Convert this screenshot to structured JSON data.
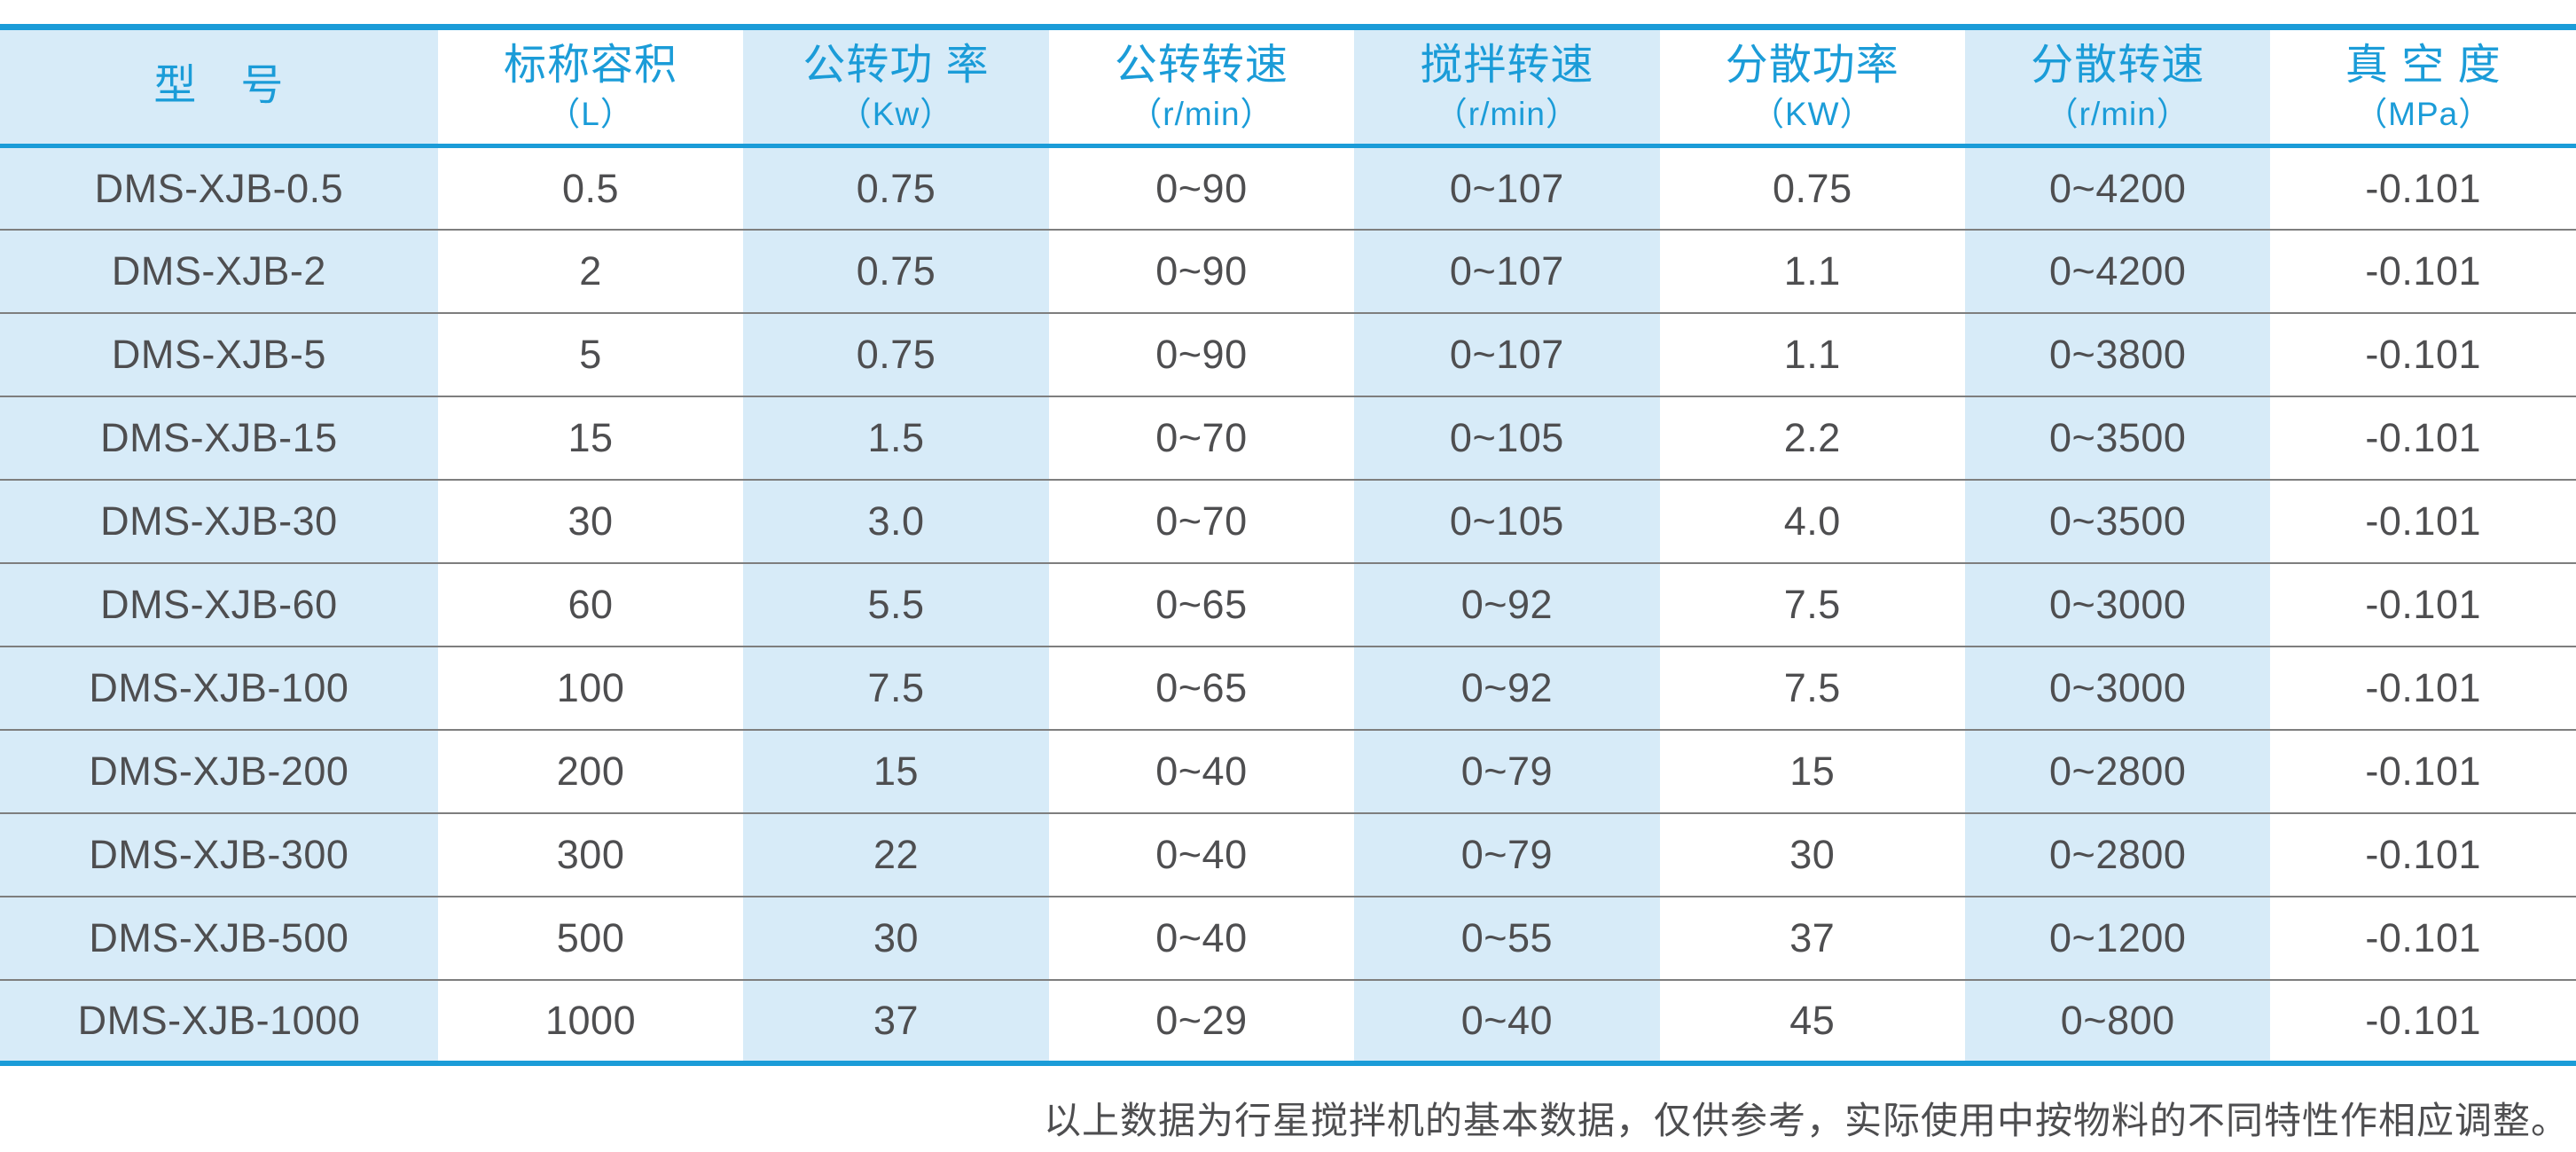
{
  "colors": {
    "accent": "#1b9cd8",
    "stripe": "#d7ebf8",
    "text": "#4e4e50",
    "separator": "#7e7e7e",
    "bg": "#ffffff"
  },
  "table": {
    "columns": [
      {
        "title": "型　号",
        "unit": ""
      },
      {
        "title": "标称容积",
        "unit": "（L）"
      },
      {
        "title": "公转功 率",
        "unit": "（Kw）"
      },
      {
        "title": "公转转速",
        "unit": "（r/min）"
      },
      {
        "title": "搅拌转速",
        "unit": "（r/min）"
      },
      {
        "title": "分散功率",
        "unit": "（KW）"
      },
      {
        "title": "分散转速",
        "unit": "（r/min）"
      },
      {
        "title": "真 空 度",
        "unit": "（MPa）"
      }
    ],
    "rows": [
      [
        "DMS-XJB-0.5",
        "0.5",
        "0.75",
        "0~90",
        "0~107",
        "0.75",
        "0~4200",
        "-0.101"
      ],
      [
        "DMS-XJB-2",
        "2",
        "0.75",
        "0~90",
        "0~107",
        "1.1",
        "0~4200",
        "-0.101"
      ],
      [
        "DMS-XJB-5",
        "5",
        "0.75",
        "0~90",
        "0~107",
        "1.1",
        "0~3800",
        "-0.101"
      ],
      [
        "DMS-XJB-15",
        "15",
        "1.5",
        "0~70",
        "0~105",
        "2.2",
        "0~3500",
        "-0.101"
      ],
      [
        "DMS-XJB-30",
        "30",
        "3.0",
        "0~70",
        "0~105",
        "4.0",
        "0~3500",
        "-0.101"
      ],
      [
        "DMS-XJB-60",
        "60",
        "5.5",
        "0~65",
        "0~92",
        "7.5",
        "0~3000",
        "-0.101"
      ],
      [
        "DMS-XJB-100",
        "100",
        "7.5",
        "0~65",
        "0~92",
        "7.5",
        "0~3000",
        "-0.101"
      ],
      [
        "DMS-XJB-200",
        "200",
        "15",
        "0~40",
        "0~79",
        "15",
        "0~2800",
        "-0.101"
      ],
      [
        "DMS-XJB-300",
        "300",
        "22",
        "0~40",
        "0~79",
        "30",
        "0~2800",
        "-0.101"
      ],
      [
        "DMS-XJB-500",
        "500",
        "30",
        "0~40",
        "0~55",
        "37",
        "0~1200",
        "-0.101"
      ],
      [
        "DMS-XJB-1000",
        "1000",
        "37",
        "0~29",
        "0~40",
        "45",
        "0~800",
        "-0.101"
      ]
    ]
  },
  "footer": {
    "note": "以上数据为行星搅拌机的基本数据，仅供参考，实际使用中按物料的不同特性作相应调整。"
  }
}
